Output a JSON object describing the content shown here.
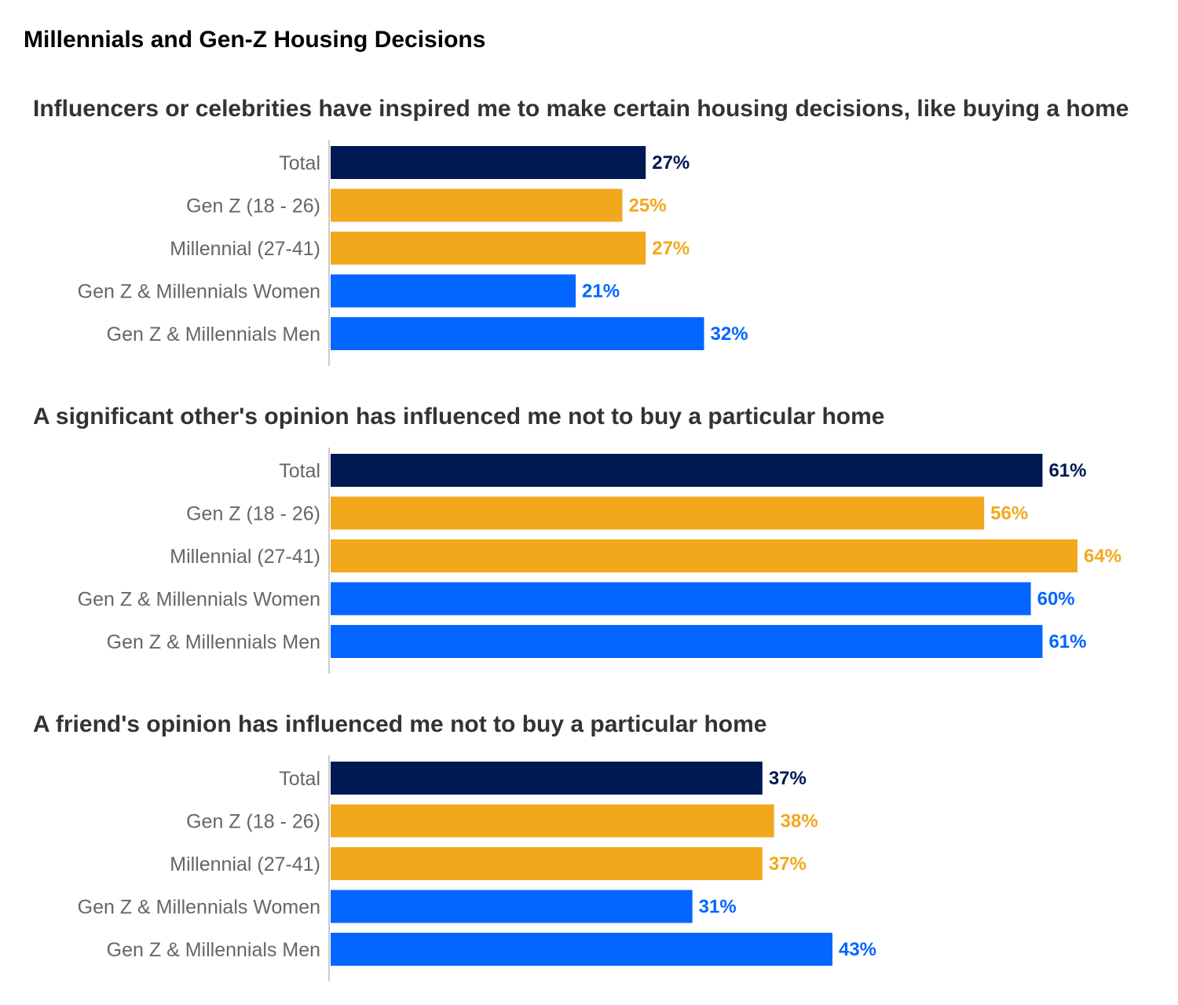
{
  "title": "Millennials and Gen-Z Housing Decisions",
  "colors": {
    "Total": "#001952",
    "Gen Z (18 - 26)": "#F2A81D",
    "Millennial (27-41)": "#F2A81D",
    "Gen Z & Millennials Women": "#0266FF",
    "Gen Z & Millennials  Men": "#0266FF"
  },
  "chart_data": [
    {
      "type": "bar",
      "orientation": "horizontal",
      "title": "Influencers or celebrities have inspired me to make certain housing decisions, like buying a home",
      "categories": [
        "Total",
        "Gen Z (18 - 26)",
        "Millennial (27-41)",
        "Gen Z & Millennials Women",
        "Gen Z & Millennials  Men"
      ],
      "values": [
        27,
        25,
        27,
        21,
        32
      ],
      "value_labels": [
        "27%",
        "25%",
        "27%",
        "21%",
        "32%"
      ],
      "unit": "%",
      "xlim": [
        0,
        70
      ],
      "grid": false
    },
    {
      "type": "bar",
      "orientation": "horizontal",
      "title": "A significant other's opinion has influenced me not to buy a particular home",
      "categories": [
        "Total",
        "Gen Z (18 - 26)",
        "Millennial (27-41)",
        "Gen Z & Millennials Women",
        "Gen Z & Millennials  Men"
      ],
      "values": [
        61,
        56,
        64,
        60,
        61
      ],
      "value_labels": [
        "61%",
        "56%",
        "64%",
        "60%",
        "61%"
      ],
      "unit": "%",
      "xlim": [
        0,
        70
      ],
      "grid": false
    },
    {
      "type": "bar",
      "orientation": "horizontal",
      "title": "A friend's opinion has influenced me not to buy a particular home",
      "categories": [
        "Total",
        "Gen Z (18 - 26)",
        "Millennial (27-41)",
        "Gen Z & Millennials Women",
        "Gen Z & Millennials  Men"
      ],
      "values": [
        37,
        38,
        37,
        31,
        43
      ],
      "value_labels": [
        "37%",
        "38%",
        "37%",
        "31%",
        "43%"
      ],
      "unit": "%",
      "xlim": [
        0,
        70
      ],
      "grid": false
    }
  ]
}
